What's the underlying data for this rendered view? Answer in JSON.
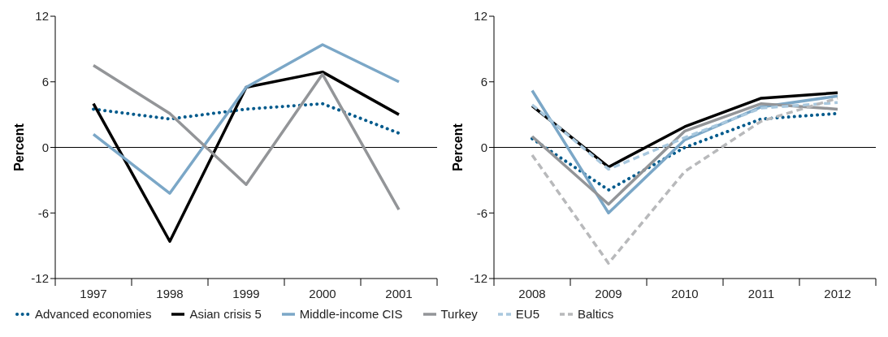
{
  "chart_data": [
    {
      "type": "line",
      "ylabel": "Percent",
      "categories": [
        "1997",
        "1998",
        "1999",
        "2000",
        "2001"
      ],
      "ylim": [
        -12,
        12
      ],
      "yticks": [
        -12,
        -6,
        0,
        6,
        12
      ],
      "grid": false,
      "ref_lines": [
        {
          "axis": "y",
          "value": 0,
          "color": "#000000"
        }
      ],
      "series": [
        {
          "color": "#005a8c",
          "line_style": "dotted",
          "values": [
            3.5,
            2.6,
            3.5,
            4.0,
            1.3
          ]
        },
        {
          "color": "#000000",
          "line_style": "solid",
          "values": [
            4.0,
            -8.6,
            5.5,
            6.9,
            3.0
          ]
        },
        {
          "color": "#7ba7c7",
          "line_style": "solid",
          "values": [
            1.2,
            -4.2,
            5.5,
            9.4,
            6.0
          ]
        },
        {
          "color": "#939598",
          "line_style": "solid",
          "values": [
            7.5,
            3.1,
            -3.4,
            6.7,
            -5.7
          ]
        }
      ]
    },
    {
      "type": "line",
      "ylabel": "Percent",
      "categories": [
        "2008",
        "2009",
        "2010",
        "2011",
        "2012"
      ],
      "ylim": [
        -12,
        12
      ],
      "yticks": [
        -12,
        -6,
        0,
        6,
        12
      ],
      "grid": false,
      "legend": "bottom",
      "ref_lines": [
        {
          "axis": "y",
          "value": 0,
          "color": "#000000"
        }
      ],
      "series": [
        {
          "name": "Advanced economies",
          "color": "#005a8c",
          "line_style": "dotted",
          "values": [
            0.8,
            -3.9,
            0.0,
            2.6,
            3.1
          ]
        },
        {
          "name": "Asian crisis 5",
          "color": "#000000",
          "line_style": "solid",
          "values": [
            3.8,
            -1.8,
            1.9,
            4.5,
            5.0
          ]
        },
        {
          "name": "Middle-income CIS",
          "color": "#7ba7c7",
          "line_style": "solid",
          "values": [
            5.2,
            -6.0,
            0.7,
            3.7,
            4.7
          ]
        },
        {
          "name": "Turkey",
          "color": "#939598",
          "line_style": "solid",
          "values": [
            1.0,
            -5.2,
            1.5,
            4.0,
            3.5
          ]
        },
        {
          "name": "EU5",
          "color": "#a9c8de",
          "line_style": "dashed",
          "values": [
            3.9,
            -2.0,
            0.9,
            3.6,
            4.1
          ]
        },
        {
          "name": "Baltics",
          "color": "#b8b9bb",
          "line_style": "dashed",
          "values": [
            -0.7,
            -10.6,
            -2.2,
            2.4,
            4.5
          ]
        }
      ]
    }
  ]
}
